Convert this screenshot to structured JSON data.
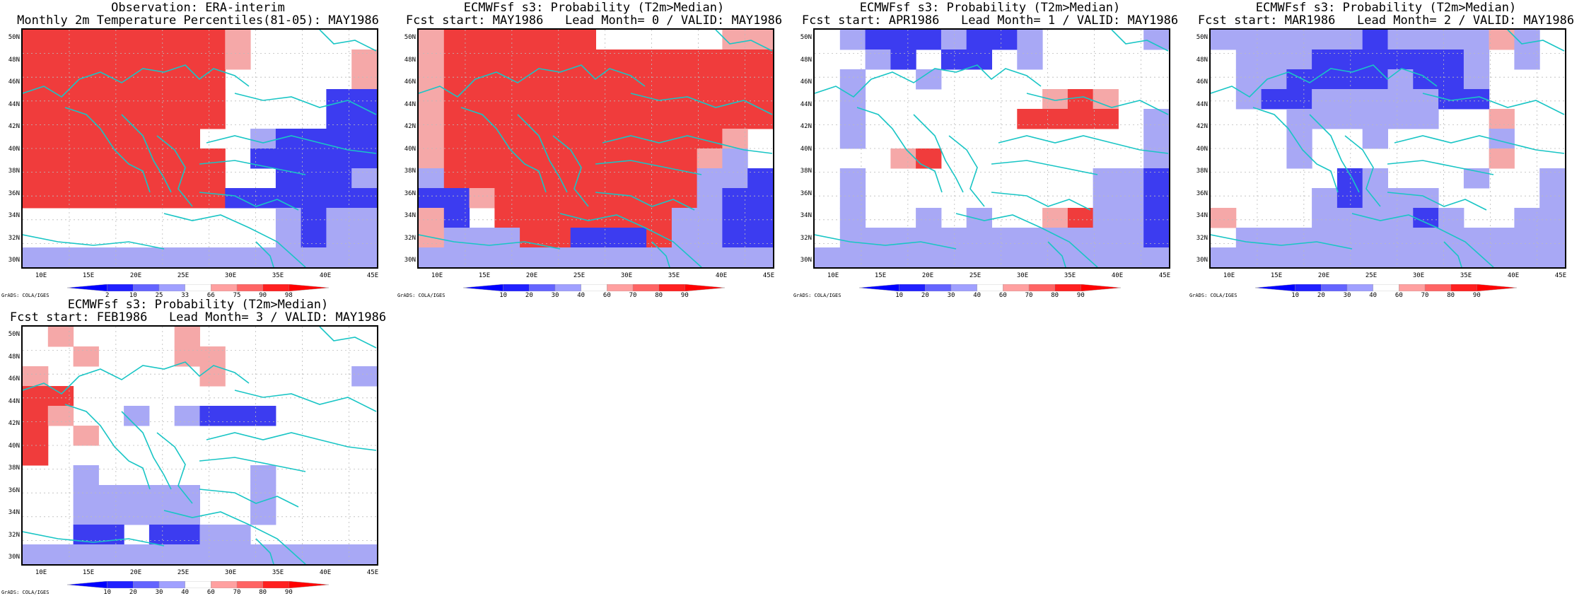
{
  "panels": [
    {
      "title1": "Observation: ERA-interim",
      "title2": "Monthly 2m Temperature Percentiles(81-05): MAY1986",
      "legend_labels": [
        "2",
        "10",
        "25",
        "33",
        "66",
        "75",
        "90",
        "98"
      ],
      "grid": [
        "RRRRRRRRp.....",
        "RRRRRRRRp....p",
        "RRRRRRRR.....p",
        "RRRRRRRR....BB",
        "RRRRRRRR....BB",
        "RRRRRRR..bBBBB",
        "RRRRRRRR.BBBBB",
        "RRRRRRRR..BBBb",
        "RRRRRRRRBBBBBB",
        "..........bBbb",
        "..........bBbb",
        "bbbbbbbbbbbbbb"
      ]
    },
    {
      "title1": "ECMWFsf s3: Probability (T2m>Median)",
      "title2": "Fcst start: MAY1986   Lead Month= 0 / VALID: MAY1986",
      "legend_labels": [
        "10",
        "20",
        "30",
        "40",
        "60",
        "70",
        "80",
        "90"
      ],
      "grid": [
        "pRRRRRR.....pp",
        "pRRRRRRRRRRRRR",
        "pRRRRRRRRRRRRR",
        "pRRRRRRRRRRRRR",
        "pRRRRRRRRRRRRR",
        "pRRRRRRRRRRRp.",
        "pRRRRRRRRRRpb.",
        "bRRRRRRRRRRbbB",
        "BBpRRRRRRRRbBB",
        "pB.RRRRRRRbbBB",
        "pbbbRRBBBRbbBB",
        "bbbbbbbbbbbbbb"
      ]
    },
    {
      "title1": "ECMWFsf s3: Probability (T2m>Median)",
      "title2": "Fcst start: APR1986   Lead Month= 1 / VALID: MAY1986",
      "legend_labels": [
        "10",
        "20",
        "30",
        "40",
        "60",
        "70",
        "80",
        "90"
      ],
      "grid": [
        ".bBBBbBBb....b",
        "..bB.BB.b.....",
        ".b..b.........",
        ".b.......pRp..",
        ".b......RRRR.b",
        ".b...........b",
        "...pR........b",
        ".b.........bbB",
        ".b.........bbB",
        ".b..b.b..pRbbB",
        ".bbbbbbbbbbbbB",
        "bbbbbbbbbbbbbb"
      ]
    },
    {
      "title1": "ECMWFsf s3: Probability (T2m>Median)",
      "title2": "Fcst start: MAR1986   Lead Month= 2 / VALID: MAY1986",
      "legend_labels": [
        "10",
        "20",
        "30",
        "40",
        "60",
        "70",
        "80",
        "90"
      ],
      "grid": [
        "bbbbbbBbbbbpb.",
        ".bbbBBBBBBb.b.",
        ".bbBBBBbBBb...",
        ".bBBbbbbbBB...",
        "...bbbbbb..p..",
        "...b..b....b..",
        "...b.......p..",
        ".....Bb...b..b",
        "....bBbbb....b",
        "p...bbbbBb..bb",
        ".bbbbbbbbbbbbb",
        "bbbbbbbbbbbbbb"
      ]
    },
    {
      "title1": "ECMWFsf s3: Probability (T2m>Median)",
      "title2": "Fcst start: FEB1986   Lead Month= 3 / VALID: MAY1986",
      "legend_labels": [
        "10",
        "20",
        "30",
        "40",
        "60",
        "70",
        "80",
        "90"
      ],
      "grid": [
        ".p....p.......",
        "..p...pp......",
        "p......p.....b",
        "RR............",
        "Rp..b.bBBB....",
        "R.p...........",
        "R.............",
        "..b......b....",
        "..bbbbb..b....",
        "..bbbbb..b....",
        "..BB.BBbb.....",
        "bbbbbbbbbbbbbb"
      ]
    }
  ],
  "lat_labels": [
    "50N",
    "48N",
    "46N",
    "44N",
    "42N",
    "40N",
    "38N",
    "36N",
    "34N",
    "32N",
    "30N"
  ],
  "lon_labels": [
    "10E",
    "15E",
    "20E",
    "25E",
    "30E",
    "35E",
    "40E",
    "45E"
  ],
  "grads_note": "GrADS: COLA/IGES",
  "colors": {
    "R": "#f03c3c",
    "p": "#f5a8a8",
    "B": "#3c3cf0",
    "b": "#a8a8f5",
    "coast": "#19c5c5",
    "legend": [
      "#0000ff",
      "#2020ff",
      "#6464ff",
      "#a0a0ff",
      "#ffffff",
      "#ffa0a0",
      "#ff6464",
      "#ff2020",
      "#ff0000"
    ]
  }
}
